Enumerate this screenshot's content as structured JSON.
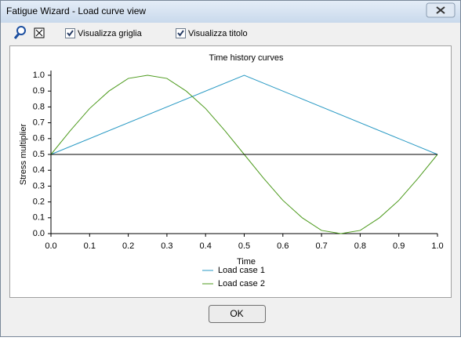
{
  "window": {
    "title": "Fatigue Wizard - Load curve view",
    "checkboxes": [
      {
        "label": "Visualizza griglia",
        "checked": true
      },
      {
        "label": "Visualizza titolo",
        "checked": true
      }
    ],
    "ok_button": "OK"
  },
  "chart_data": {
    "type": "line",
    "title": "Time history curves",
    "x_label": "Time",
    "y_label": "Stress multiplier",
    "xlim": [
      0,
      1
    ],
    "ylim": [
      0,
      1
    ],
    "grid": false,
    "xticks": [
      {
        "value": 0,
        "label": "0.0"
      },
      0.1,
      0.2,
      0.3,
      0.4,
      0.5,
      0.6,
      0.7,
      0.8,
      0.9,
      {
        "value": 1,
        "label": "1.0"
      }
    ],
    "yticks": [
      {
        "value": 0,
        "label": "0.0"
      },
      0.1,
      0.2,
      0.3,
      0.4,
      0.5,
      0.6,
      0.7,
      0.8,
      0.9,
      {
        "value": 1,
        "label": "1.0"
      }
    ],
    "series": [
      {
        "name": "Load case 1",
        "color": "#2a9ac4",
        "x": [
          0,
          0.5,
          1
        ],
        "values": [
          0.5,
          1,
          0.5
        ]
      },
      {
        "name": "Load case 2",
        "color": "#4c9a1c",
        "x": [
          0,
          0.05,
          0.1,
          0.15,
          0.2,
          0.25,
          0.3,
          0.35,
          0.4,
          0.45,
          0.5,
          0.55,
          0.6,
          0.65,
          0.7,
          0.75,
          0.8,
          0.85,
          0.9,
          0.95,
          1
        ],
        "values": [
          0.5,
          0.65,
          0.79,
          0.9,
          0.98,
          1,
          0.98,
          0.9,
          0.79,
          0.65,
          0.5,
          0.35,
          0.21,
          0.1,
          0.02,
          0,
          0.02,
          0.1,
          0.21,
          0.35,
          0.5
        ]
      },
      {
        "color": "#000000",
        "x": [
          0,
          1
        ],
        "values": [
          0.5,
          0.5
        ]
      }
    ]
  }
}
